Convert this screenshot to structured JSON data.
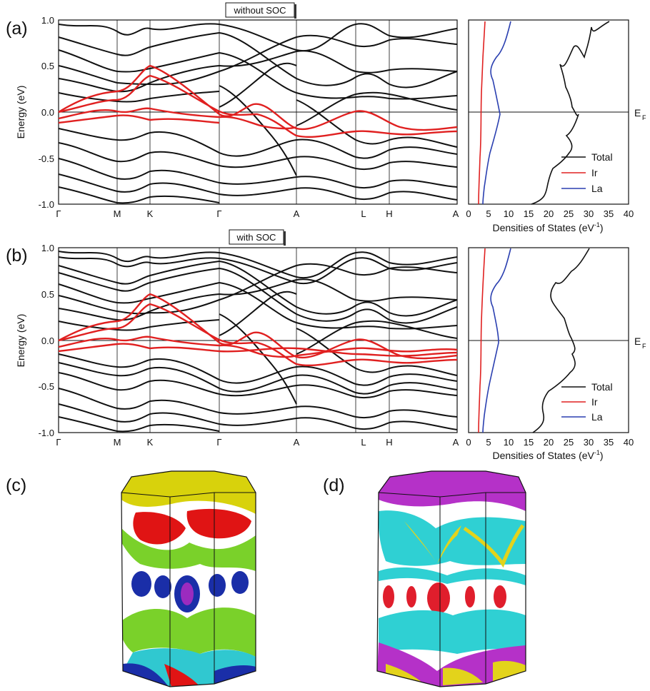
{
  "figure": {
    "panels": [
      {
        "label": "(a)",
        "tag": "without SOC",
        "band_ylabel": "Energy (eV)",
        "energy_ticks": [
          "1.0",
          "0.5",
          "0.0",
          "-0.5",
          "-1.0"
        ],
        "kpath": [
          "Γ",
          "M",
          "K",
          "Γ",
          "A",
          "L",
          "H",
          "A"
        ],
        "dos_xlabel": "Densities of States (eV",
        "dos_xlabel_sup": "-1",
        "dos_xlabel_end": ")",
        "dos_ticks": [
          "0",
          "5",
          "10",
          "15",
          "20",
          "25",
          "30",
          "35",
          "40"
        ],
        "ef_label": "E",
        "ef_sub": "F",
        "legend": [
          "Total",
          "Ir",
          "La"
        ]
      },
      {
        "label": "(b)",
        "tag": "with SOC",
        "band_ylabel": "Energy (eV)",
        "energy_ticks": [
          "1.0",
          "0.5",
          "0.0",
          "-0.5",
          "-1.0"
        ],
        "kpath": [
          "Γ",
          "M",
          "K",
          "Γ",
          "A",
          "L",
          "H",
          "A"
        ],
        "dos_xlabel": "Densities of States (eV",
        "dos_xlabel_sup": "-1",
        "dos_xlabel_end": ")",
        "dos_ticks": [
          "0",
          "5",
          "10",
          "15",
          "20",
          "25",
          "30",
          "35",
          "40"
        ],
        "ef_label": "E",
        "ef_sub": "F",
        "legend": [
          "Total",
          "Ir",
          "La"
        ]
      }
    ],
    "fermi_surfaces": [
      {
        "label": "(c)",
        "layer_colors": [
          "#d8d20c",
          "#e01414",
          "#7ad12a",
          "#1a2ea8",
          "#9b2bbf",
          "#30c8d0"
        ]
      },
      {
        "label": "(d)",
        "layer_colors": [
          "#b531c8",
          "#2fd0d3",
          "#e01e2c",
          "#e3d31b",
          "#1a2ea8"
        ]
      }
    ],
    "colors": {
      "total": "#111111",
      "ir": "#e02020",
      "la": "#2a3fb0",
      "axis": "#111111"
    }
  },
  "chart_data": [
    {
      "type": "line",
      "title": "without SOC",
      "ylabel": "Energy (eV)",
      "ylim": [
        -1.0,
        1.0
      ],
      "k_labels": [
        "Γ",
        "M",
        "K",
        "Γ",
        "A",
        "L",
        "H",
        "A"
      ],
      "series": [
        {
          "name": "",
          "color": "#e02020",
          "points": [
            [
              0,
              0.0
            ],
            [
              0.5,
              0.2
            ],
            [
              1.0,
              0.22
            ],
            [
              1.5,
              0.45
            ],
            [
              2.0,
              -0.05
            ],
            [
              3.0,
              0.0
            ],
            [
              3.5,
              0.1
            ],
            [
              4.0,
              -0.2
            ],
            [
              5.0,
              0.02
            ],
            [
              6.0,
              -0.2
            ],
            [
              7.0,
              -0.2
            ]
          ]
        }
      ]
    },
    {
      "type": "line",
      "title": "",
      "xlabel": "Densities of States (eV-1)",
      "xlim": [
        0,
        40
      ],
      "ylim": [
        -1.0,
        1.0
      ],
      "legend_position": "bottom-right",
      "series": [
        {
          "name": "Total",
          "color": "#111111",
          "points": [
            [
              35,
              1.0
            ],
            [
              27,
              0.9
            ],
            [
              20,
              0.5
            ],
            [
              22,
              0.3
            ],
            [
              24,
              0.0
            ],
            [
              26,
              -0.1
            ],
            [
              20,
              -0.4
            ],
            [
              14,
              -0.7
            ],
            [
              15,
              -1.0
            ]
          ]
        },
        {
          "name": "Ir",
          "color": "#e02020",
          "points": [
            [
              4,
              1.0
            ],
            [
              3,
              0.5
            ],
            [
              3,
              0.0
            ],
            [
              2.5,
              -0.5
            ],
            [
              2.5,
              -1.0
            ]
          ]
        },
        {
          "name": "La",
          "color": "#2a3fb0",
          "points": [
            [
              11,
              1.0
            ],
            [
              7,
              0.5
            ],
            [
              8,
              0.0
            ],
            [
              5,
              -0.5
            ],
            [
              4,
              -1.0
            ]
          ]
        }
      ]
    },
    {
      "type": "line",
      "title": "with SOC",
      "ylabel": "Energy (eV)",
      "ylim": [
        -1.0,
        1.0
      ],
      "k_labels": [
        "Γ",
        "M",
        "K",
        "Γ",
        "A",
        "L",
        "H",
        "A"
      ],
      "series": [
        {
          "name": "",
          "color": "#e02020",
          "points": [
            [
              0,
              0.0
            ],
            [
              0.5,
              0.15
            ],
            [
              1.0,
              0.2
            ],
            [
              1.5,
              0.45
            ],
            [
              2.0,
              0.0
            ],
            [
              3.0,
              0.0
            ],
            [
              3.5,
              0.08
            ],
            [
              4.0,
              -0.15
            ],
            [
              5.0,
              -0.05
            ],
            [
              6.0,
              -0.2
            ],
            [
              7.0,
              -0.15
            ]
          ]
        }
      ]
    },
    {
      "type": "line",
      "title": "",
      "xlabel": "Densities of States (eV-1)",
      "xlim": [
        0,
        40
      ],
      "ylim": [
        -1.0,
        1.0
      ],
      "legend_position": "bottom-right",
      "series": [
        {
          "name": "Total",
          "color": "#111111",
          "points": [
            [
              30,
              1.0
            ],
            [
              25,
              0.8
            ],
            [
              17,
              0.5
            ],
            [
              22,
              0.3
            ],
            [
              24,
              0.0
            ],
            [
              25,
              -0.1
            ],
            [
              20,
              -0.4
            ],
            [
              15,
              -0.7
            ],
            [
              15,
              -1.0
            ]
          ]
        },
        {
          "name": "Ir",
          "color": "#e02020",
          "points": [
            [
              4,
              1.0
            ],
            [
              3,
              0.5
            ],
            [
              3,
              0.0
            ],
            [
              2.5,
              -0.5
            ],
            [
              2.5,
              -1.0
            ]
          ]
        },
        {
          "name": "La",
          "color": "#2a3fb0",
          "points": [
            [
              10,
              1.0
            ],
            [
              7,
              0.5
            ],
            [
              7,
              0.0
            ],
            [
              5,
              -0.5
            ],
            [
              4,
              -1.0
            ]
          ]
        }
      ]
    }
  ]
}
